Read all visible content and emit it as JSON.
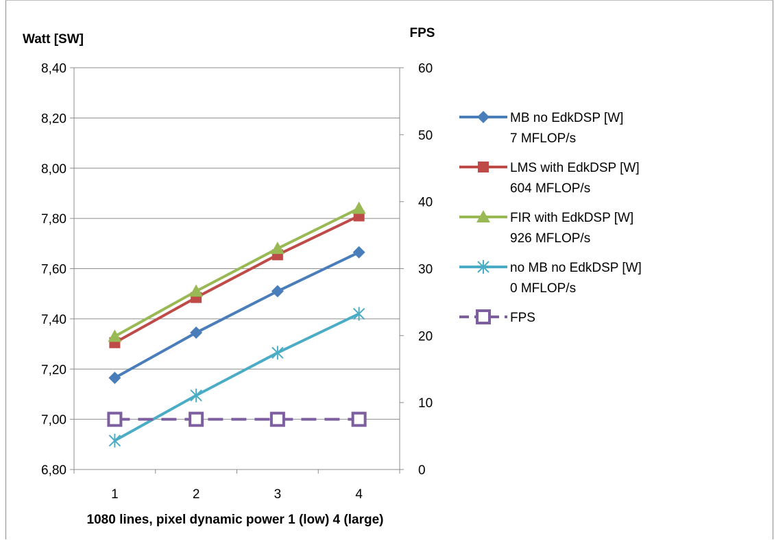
{
  "chart_data": {
    "type": "line",
    "categories": [
      "1",
      "2",
      "3",
      "4"
    ],
    "xlabel": "1080 lines, pixel dynamic power 1 (low) 4 (large)",
    "y_left": {
      "label": "Watt [SW]",
      "ylim": [
        6.8,
        8.4
      ],
      "ticks": [
        "6,80",
        "7,00",
        "7,20",
        "7,40",
        "7,60",
        "7,80",
        "8,00",
        "8,20",
        "8,40"
      ]
    },
    "y_right": {
      "label": "FPS",
      "ylim": [
        0,
        60
      ],
      "ticks": [
        "0",
        "10",
        "20",
        "30",
        "40",
        "50",
        "60"
      ]
    },
    "grid": "horizontal",
    "legend_position": "right",
    "series": [
      {
        "name": "MB no EdkDSP [W]",
        "name2": "7 MFLOP/s",
        "axis": "left",
        "color": "#4a7ebb",
        "marker": "diamond",
        "dash": false,
        "values": [
          7.165,
          7.345,
          7.51,
          7.665
        ]
      },
      {
        "name": "LMS with EdkDSP [W]",
        "name2": "604 MFLOP/s",
        "axis": "left",
        "color": "#be4b48",
        "marker": "square",
        "dash": false,
        "values": [
          7.305,
          7.485,
          7.655,
          7.81
        ]
      },
      {
        "name": "FIR with EdkDSP [W]",
        "name2": "926 MFLOP/s",
        "axis": "left",
        "color": "#98b954",
        "marker": "triangle",
        "dash": false,
        "values": [
          7.33,
          7.51,
          7.68,
          7.84
        ]
      },
      {
        "name": "no MB no EdkDSP [W]",
        "name2": "0 MFLOP/s",
        "axis": "left",
        "color": "#4bacc6",
        "marker": "star",
        "dash": false,
        "values": [
          6.915,
          7.095,
          7.265,
          7.42
        ]
      },
      {
        "name": "FPS",
        "name2": "",
        "axis": "right",
        "color": "#7d5fa0",
        "marker": "hollow-square",
        "dash": true,
        "values": [
          7.5,
          7.5,
          7.5,
          7.5
        ]
      }
    ]
  }
}
